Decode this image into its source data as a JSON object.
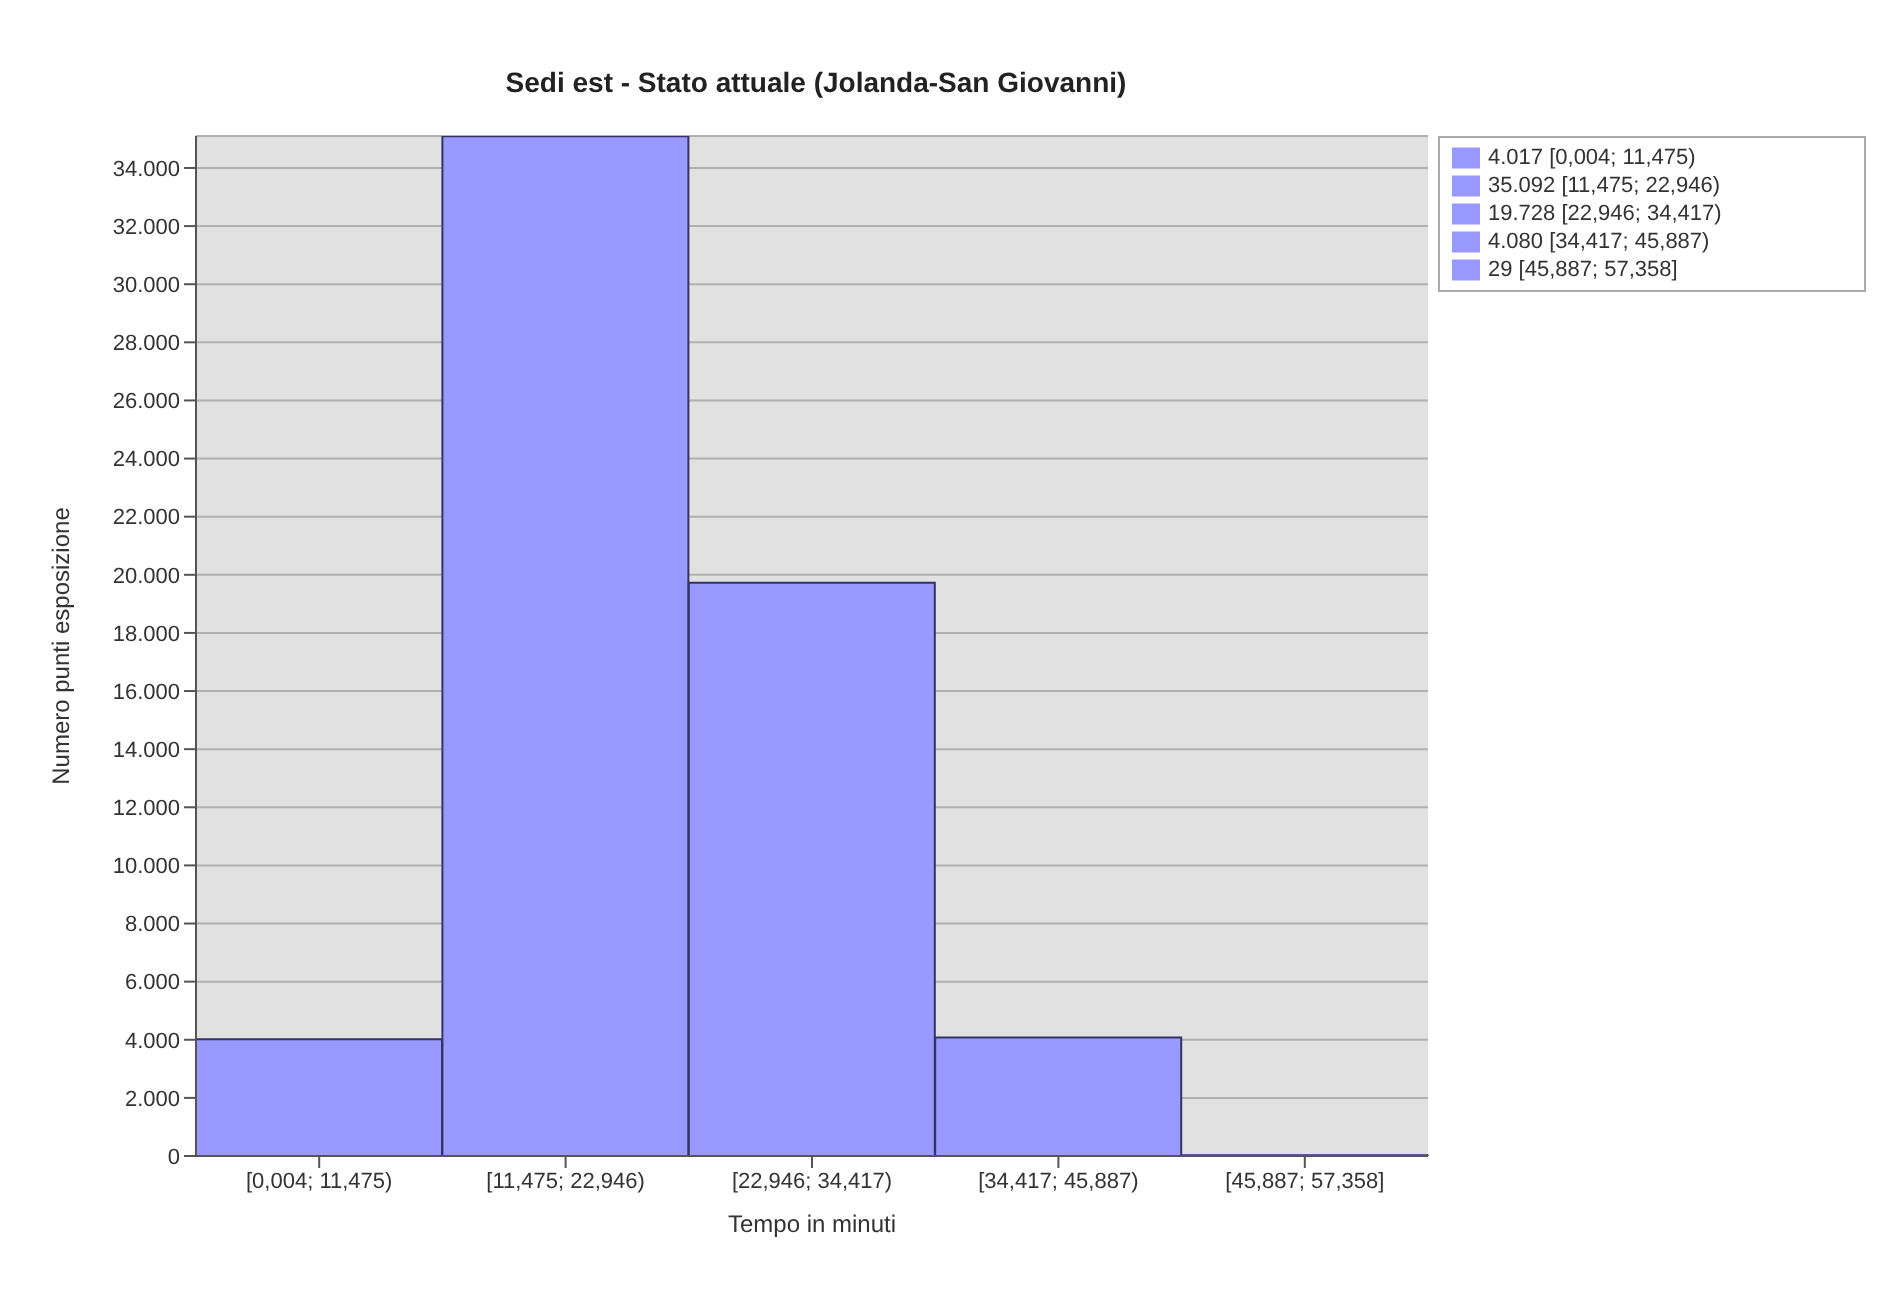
{
  "chart_data": {
    "type": "bar",
    "title": "Sedi est - Stato attuale (Jolanda-San Giovanni)",
    "xlabel": "Tempo in minuti",
    "ylabel": "Numero punti esposizione",
    "categories": [
      "[0,004; 11,475)",
      "[11,475; 22,946)",
      "[22,946; 34,417)",
      "[34,417; 45,887)",
      "[45,887; 57,358]"
    ],
    "stacked": true,
    "series": [
      {
        "name": "4.017 [0,004; 11,475)",
        "color": "#9999ff",
        "values": [
          4017,
          null,
          null,
          null,
          null
        ]
      },
      {
        "name": "35.092 [11,475; 22,946)",
        "color": "#9999ff",
        "values": [
          null,
          35092,
          null,
          null,
          null
        ]
      },
      {
        "name": "19.728 [22,946; 34,417)",
        "color": "#9999ff",
        "values": [
          null,
          null,
          19728,
          null,
          null
        ]
      },
      {
        "name": "4.080 [34,417; 45,887)",
        "color": "#9999ff",
        "values": [
          null,
          null,
          null,
          4080,
          null
        ]
      },
      {
        "name": "29 [45,887; 57,358]",
        "color": "#9999ff",
        "values": [
          null,
          null,
          null,
          null,
          29
        ]
      }
    ],
    "ylim": [
      0,
      35100
    ],
    "yticks": [
      {
        "value": 0,
        "label": "0"
      },
      {
        "value": 2000,
        "label": "2.000"
      },
      {
        "value": 4000,
        "label": "4.000"
      },
      {
        "value": 6000,
        "label": "6.000"
      },
      {
        "value": 8000,
        "label": "8.000"
      },
      {
        "value": 10000,
        "label": "10.000"
      },
      {
        "value": 12000,
        "label": "12.000"
      },
      {
        "value": 14000,
        "label": "14.000"
      },
      {
        "value": 16000,
        "label": "16.000"
      },
      {
        "value": 18000,
        "label": "18.000"
      },
      {
        "value": 20000,
        "label": "20.000"
      },
      {
        "value": 22000,
        "label": "22.000"
      },
      {
        "value": 24000,
        "label": "24.000"
      },
      {
        "value": 26000,
        "label": "26.000"
      },
      {
        "value": 28000,
        "label": "28.000"
      },
      {
        "value": 30000,
        "label": "30.000"
      },
      {
        "value": 32000,
        "label": "32.000"
      },
      {
        "value": 34000,
        "label": "34.000"
      }
    ],
    "grid": "y",
    "legend": "top right"
  }
}
